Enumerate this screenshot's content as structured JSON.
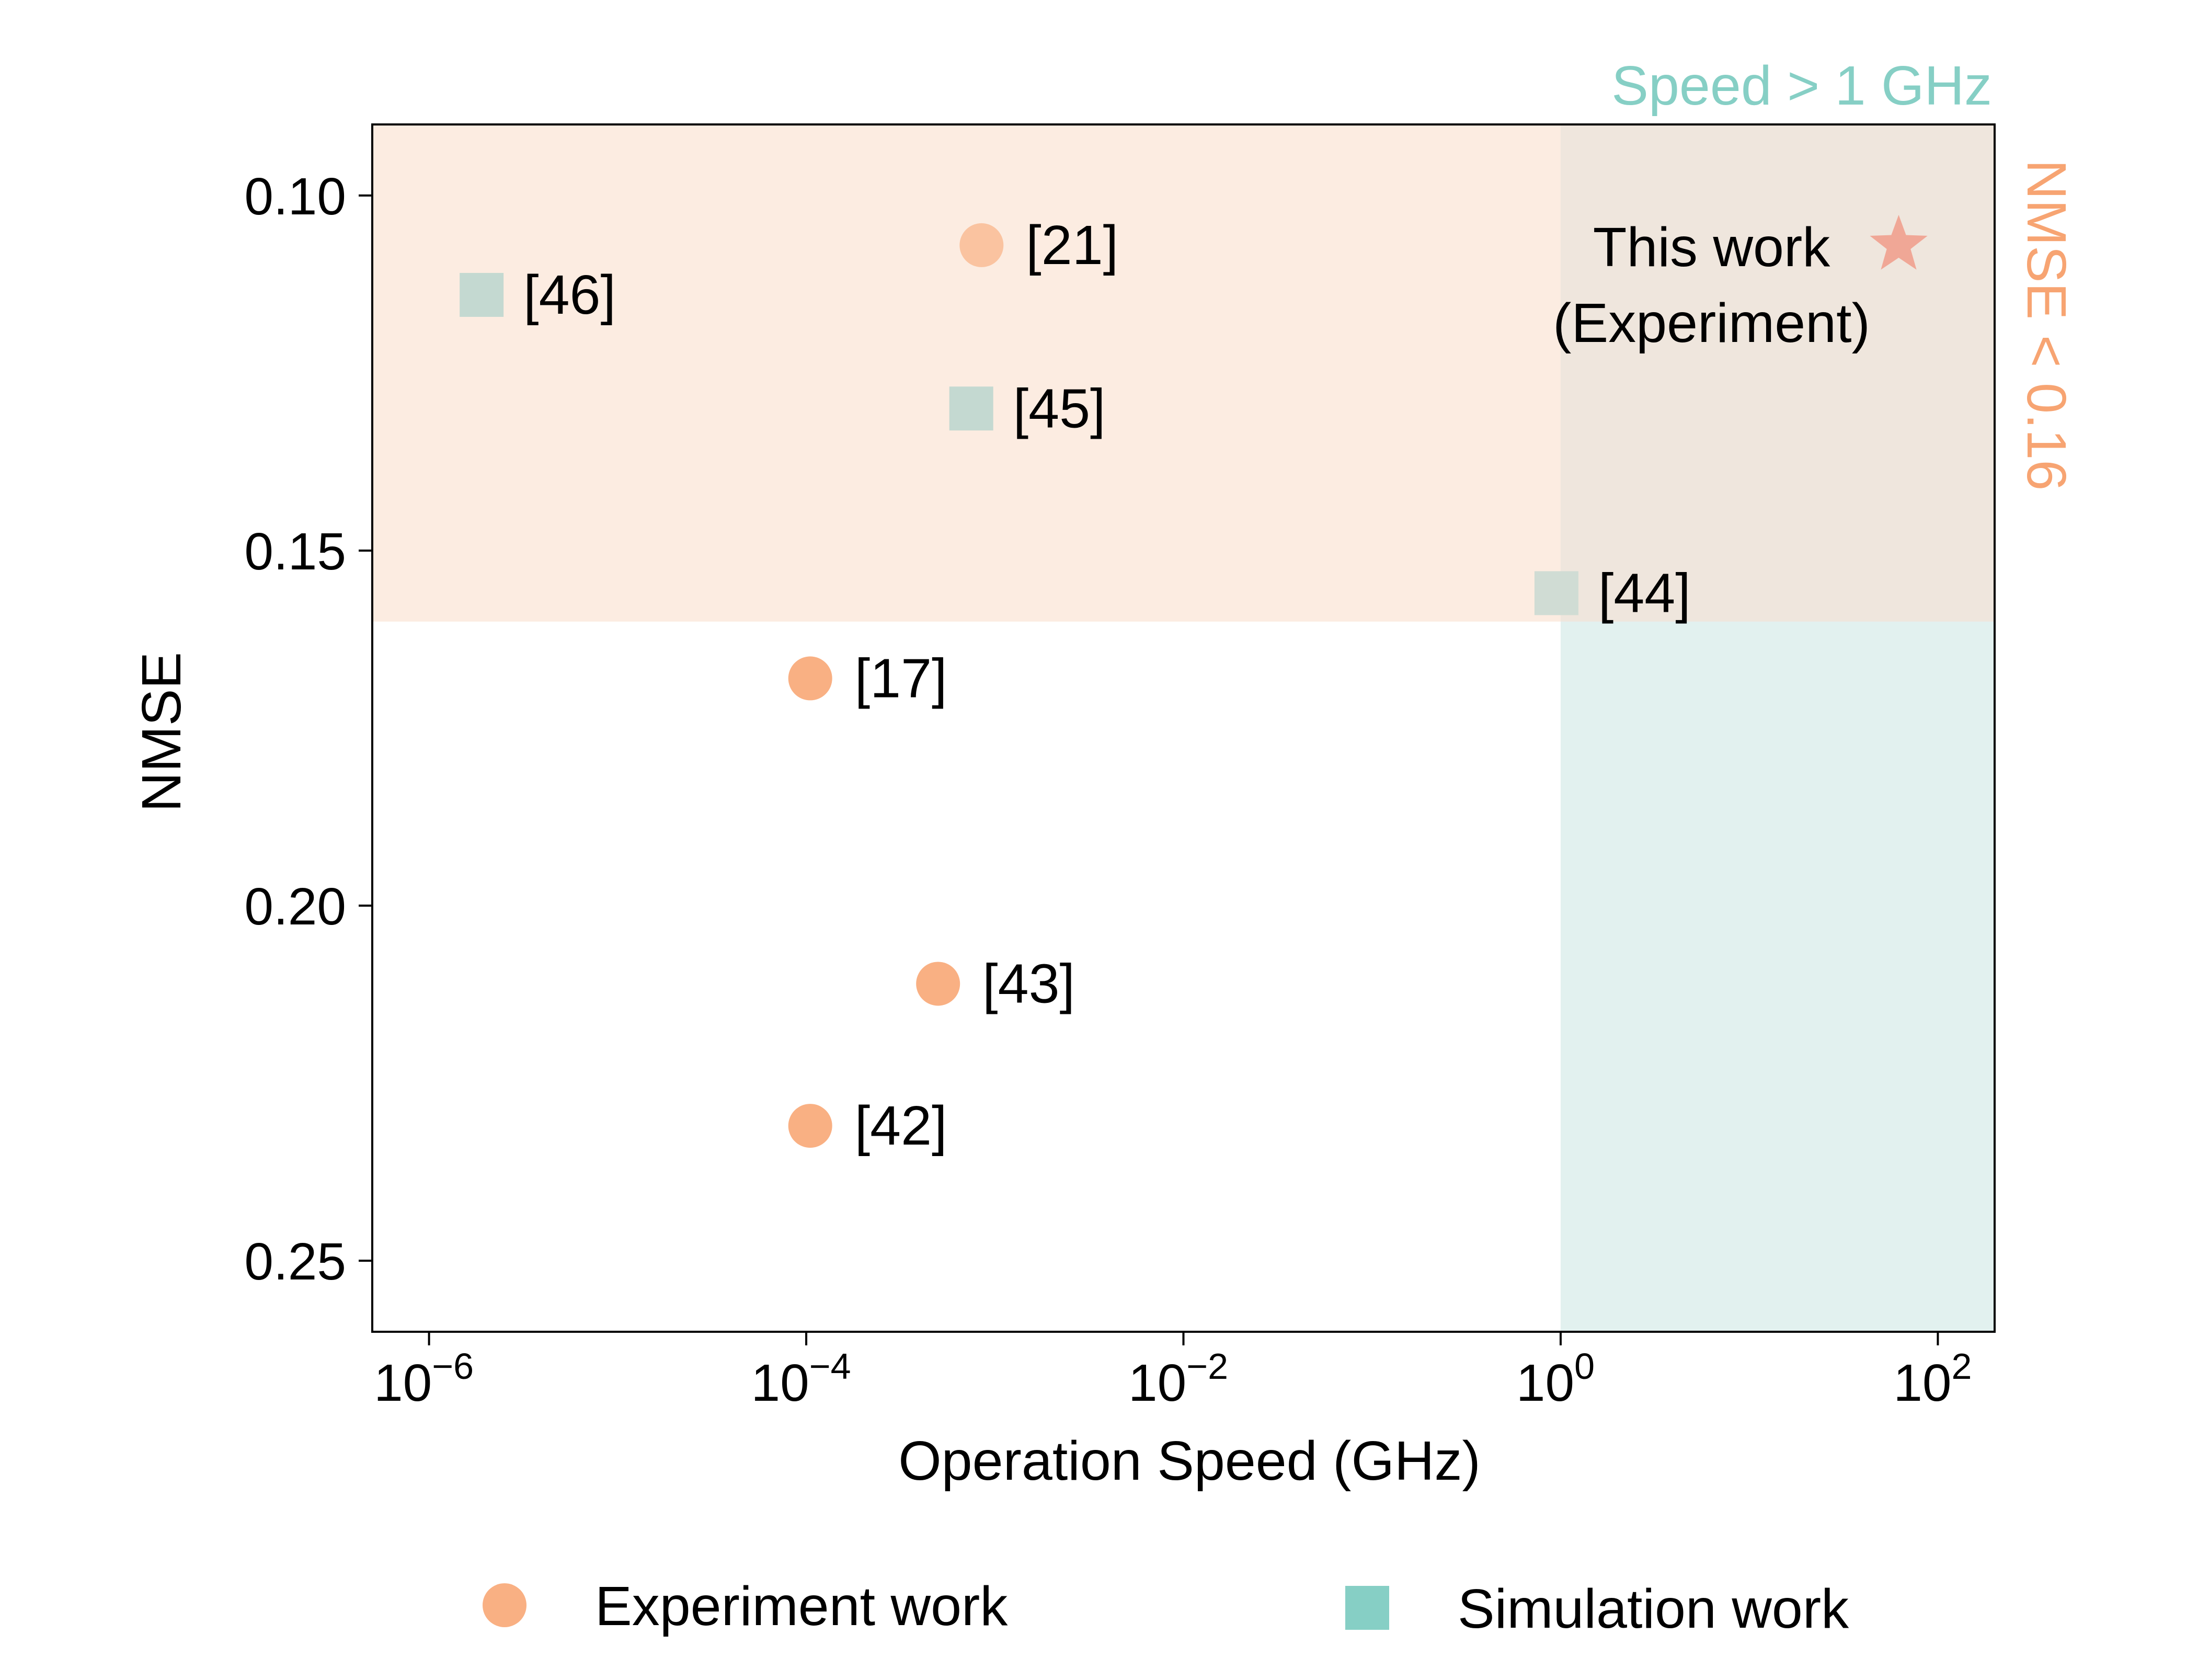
{
  "chart_data": {
    "type": "scatter",
    "title": "",
    "xlabel": "Operation Speed (GHz)",
    "ylabel": "NMSE",
    "xscale": "log",
    "xlim": [
      5e-07,
      200
    ],
    "ylim": [
      0.26,
      0.09
    ],
    "y_inverted": true,
    "x_ticks": [
      {
        "value": 1e-06,
        "base": "10",
        "exp": "−6"
      },
      {
        "value": 0.0001,
        "base": "10",
        "exp": "−4"
      },
      {
        "value": 0.01,
        "base": "10",
        "exp": "−2"
      },
      {
        "value": 1,
        "base": "10",
        "exp": "0"
      },
      {
        "value": 100,
        "base": "10",
        "exp": "2"
      }
    ],
    "y_ticks": [
      {
        "value": 0.1,
        "label": "0.10"
      },
      {
        "value": 0.15,
        "label": "0.15"
      },
      {
        "value": 0.2,
        "label": "0.20"
      },
      {
        "value": 0.25,
        "label": "0.25"
      }
    ],
    "regions": [
      {
        "name": "nmse-region",
        "y_from": 0.09,
        "y_to": 0.16,
        "color": "#fcece1",
        "label": "NMSE < 0.16",
        "label_color": "#f7a472"
      },
      {
        "name": "speed-region",
        "x_from": 1,
        "x_to": 200,
        "color": "#e2f1ef",
        "label": "Speed > 1 GHz",
        "label_color": "#86cfc5"
      },
      {
        "name": "overlap-region",
        "x_from": 1,
        "x_to": 200,
        "y_from": 0.09,
        "y_to": 0.16,
        "color": "#efe6dd"
      }
    ],
    "series": [
      {
        "name": "Experiment work",
        "marker": "circle",
        "color": "#f9b083",
        "points": [
          {
            "x": 0.00085,
            "y": 0.107,
            "label": "[21]",
            "color": "#fac3a0"
          },
          {
            "x": 0.000105,
            "y": 0.168,
            "label": "[17]"
          },
          {
            "x": 0.0005,
            "y": 0.211,
            "label": "[43]"
          },
          {
            "x": 0.000105,
            "y": 0.231,
            "label": "[42]"
          }
        ]
      },
      {
        "name": "Simulation work",
        "marker": "square",
        "color": "#86cfc5",
        "points": [
          {
            "x": 1.9e-06,
            "y": 0.114,
            "label": "[46]",
            "color": "#c4d9d1"
          },
          {
            "x": 0.00075,
            "y": 0.13,
            "label": "[45]",
            "color": "#c4d9d1"
          },
          {
            "x": 0.95,
            "y": 0.156,
            "label": "[44]",
            "color": "#d0dcd4"
          }
        ]
      },
      {
        "name": "This work",
        "marker": "star",
        "color": "#f0a796",
        "points": [
          {
            "x": 62,
            "y": 0.107,
            "label": "This work",
            "label2": "(Experiment)"
          }
        ]
      }
    ],
    "legend": {
      "placement": "bottom",
      "items": [
        {
          "label": "Experiment work",
          "marker": "circle",
          "color": "#f9b083"
        },
        {
          "label": "Simulation work",
          "marker": "square",
          "color": "#86cfc5"
        }
      ]
    }
  }
}
